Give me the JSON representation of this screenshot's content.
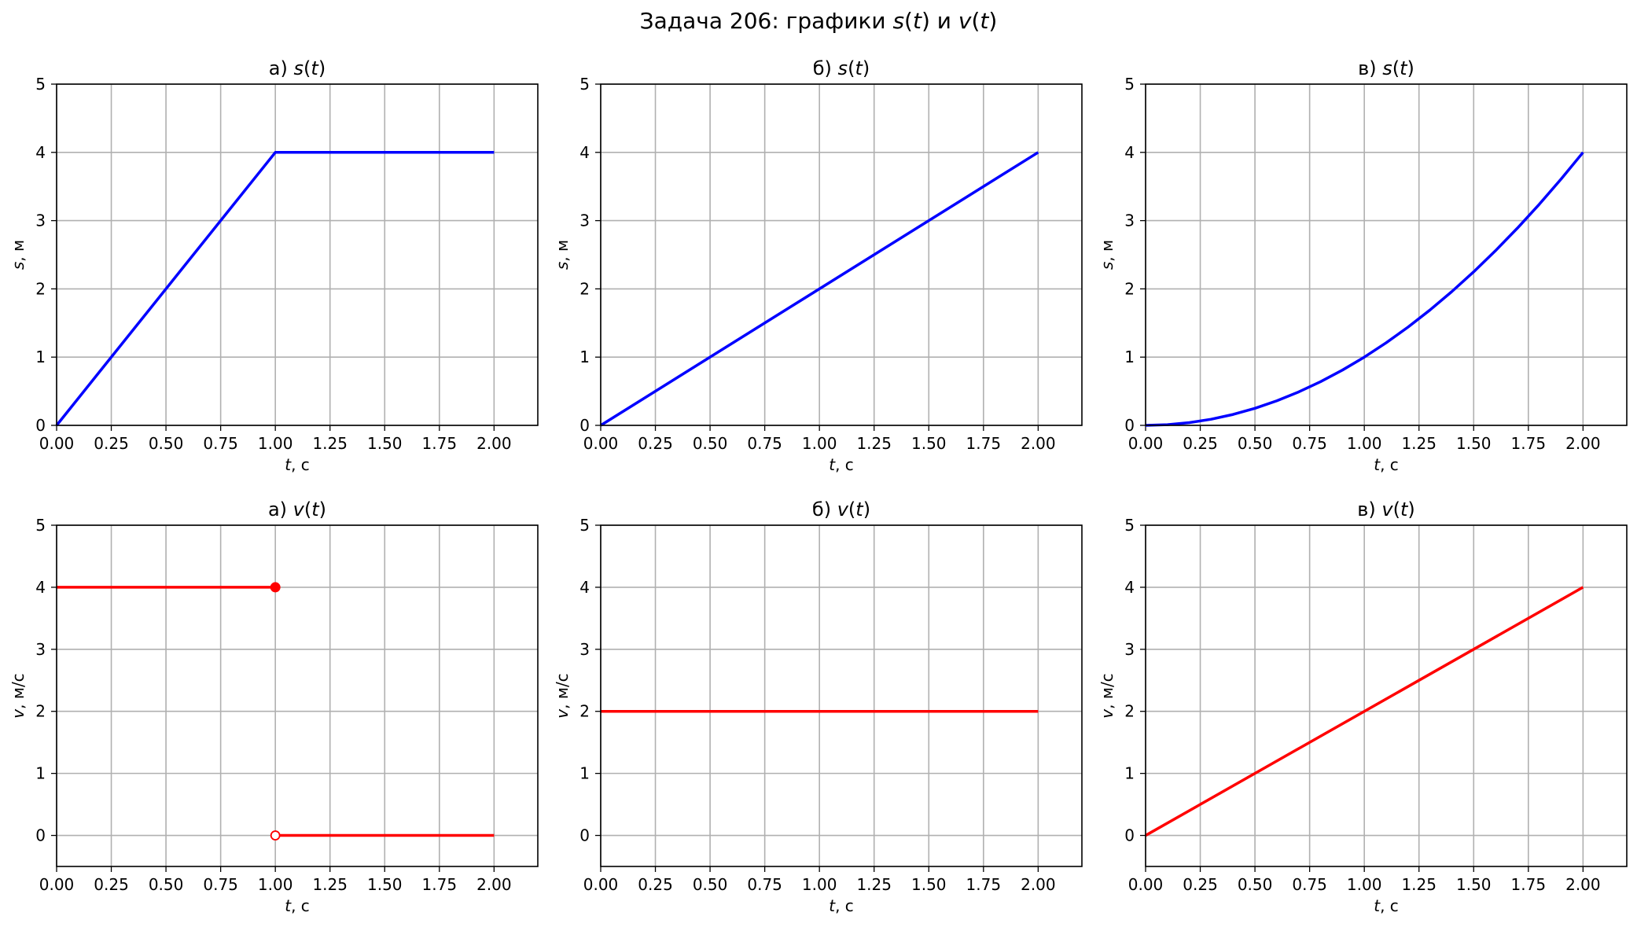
{
  "figure": {
    "title_prefix": "Задача 206: графики ",
    "title_s": "s",
    "title_open1": "(",
    "title_t1": "t",
    "title_close1": ")",
    "title_and": " и ",
    "title_v": "v",
    "title_open2": "(",
    "title_t2": "t",
    "title_close2": ")"
  },
  "colors": {
    "s_series": "#0000ff",
    "v_series": "#ff0000",
    "grid": "#b0b0b0"
  },
  "chart_data": [
    {
      "type": "line",
      "panel": "a-s",
      "title": {
        "prefix": "а) ",
        "func": "s",
        "arg": "t"
      },
      "xlabel": {
        "var": "t",
        "unit": ", с"
      },
      "ylabel": {
        "var": "s",
        "unit": ", м"
      },
      "xlim": [
        0,
        2.2
      ],
      "ylim": [
        0,
        5
      ],
      "xticks": [
        "0.00",
        "0.25",
        "0.50",
        "0.75",
        "1.00",
        "1.25",
        "1.50",
        "1.75",
        "2.00"
      ],
      "yticks": [
        "0",
        "1",
        "2",
        "3",
        "4",
        "5"
      ],
      "grid": true,
      "series": [
        {
          "color": "blue",
          "segments": [
            {
              "x": [
                0,
                1,
                2
              ],
              "y": [
                0,
                4,
                4
              ]
            }
          ]
        }
      ]
    },
    {
      "type": "line",
      "panel": "b-s",
      "title": {
        "prefix": "б) ",
        "func": "s",
        "arg": "t"
      },
      "xlabel": {
        "var": "t",
        "unit": ", с"
      },
      "ylabel": {
        "var": "s",
        "unit": ", м"
      },
      "xlim": [
        0,
        2.2
      ],
      "ylim": [
        0,
        5
      ],
      "xticks": [
        "0.00",
        "0.25",
        "0.50",
        "0.75",
        "1.00",
        "1.25",
        "1.50",
        "1.75",
        "2.00"
      ],
      "yticks": [
        "0",
        "1",
        "2",
        "3",
        "4",
        "5"
      ],
      "grid": true,
      "series": [
        {
          "color": "blue",
          "segments": [
            {
              "x": [
                0,
                2
              ],
              "y": [
                0,
                4
              ]
            }
          ]
        }
      ]
    },
    {
      "type": "line",
      "panel": "c-s",
      "title": {
        "prefix": "в) ",
        "func": "s",
        "arg": "t"
      },
      "xlabel": {
        "var": "t",
        "unit": ", с"
      },
      "ylabel": {
        "var": "s",
        "unit": ", м"
      },
      "xlim": [
        0,
        2.2
      ],
      "ylim": [
        0,
        5
      ],
      "xticks": [
        "0.00",
        "0.25",
        "0.50",
        "0.75",
        "1.00",
        "1.25",
        "1.50",
        "1.75",
        "2.00"
      ],
      "yticks": [
        "0",
        "1",
        "2",
        "3",
        "4",
        "5"
      ],
      "grid": true,
      "series": [
        {
          "color": "blue",
          "segments": [
            {
              "x": [
                0,
                0.1,
                0.2,
                0.3,
                0.4,
                0.5,
                0.6,
                0.7,
                0.8,
                0.9,
                1.0,
                1.1,
                1.2,
                1.3,
                1.4,
                1.5,
                1.6,
                1.7,
                1.8,
                1.9,
                2.0
              ],
              "y": [
                0,
                0.01,
                0.04,
                0.09,
                0.16,
                0.25,
                0.36,
                0.49,
                0.64,
                0.81,
                1.0,
                1.21,
                1.44,
                1.69,
                1.96,
                2.25,
                2.56,
                2.89,
                3.24,
                3.61,
                4.0
              ]
            }
          ]
        }
      ]
    },
    {
      "type": "line",
      "panel": "a-v",
      "title": {
        "prefix": "а) ",
        "func": "v",
        "arg": "t"
      },
      "xlabel": {
        "var": "t",
        "unit": ", с"
      },
      "ylabel": {
        "var": "v",
        "unit": ", м/с"
      },
      "xlim": [
        0,
        2.2
      ],
      "ylim": [
        -0.5,
        5
      ],
      "xticks": [
        "0.00",
        "0.25",
        "0.50",
        "0.75",
        "1.00",
        "1.25",
        "1.50",
        "1.75",
        "2.00"
      ],
      "yticks": [
        "0",
        "1",
        "2",
        "3",
        "4",
        "5"
      ],
      "grid": true,
      "series": [
        {
          "color": "red",
          "segments": [
            {
              "x": [
                0,
                1
              ],
              "y": [
                4,
                4
              ]
            },
            {
              "x": [
                1,
                2
              ],
              "y": [
                0,
                0
              ]
            }
          ]
        }
      ],
      "markers": [
        {
          "x": 1,
          "y": 4,
          "filled": true
        },
        {
          "x": 1,
          "y": 0,
          "filled": false
        }
      ]
    },
    {
      "type": "line",
      "panel": "b-v",
      "title": {
        "prefix": "б) ",
        "func": "v",
        "arg": "t"
      },
      "xlabel": {
        "var": "t",
        "unit": ", с"
      },
      "ylabel": {
        "var": "v",
        "unit": ", м/с"
      },
      "xlim": [
        0,
        2.2
      ],
      "ylim": [
        -0.5,
        5
      ],
      "xticks": [
        "0.00",
        "0.25",
        "0.50",
        "0.75",
        "1.00",
        "1.25",
        "1.50",
        "1.75",
        "2.00"
      ],
      "yticks": [
        "0",
        "1",
        "2",
        "3",
        "4",
        "5"
      ],
      "grid": true,
      "series": [
        {
          "color": "red",
          "segments": [
            {
              "x": [
                0,
                2
              ],
              "y": [
                2,
                2
              ]
            }
          ]
        }
      ]
    },
    {
      "type": "line",
      "panel": "c-v",
      "title": {
        "prefix": "в) ",
        "func": "v",
        "arg": "t"
      },
      "xlabel": {
        "var": "t",
        "unit": ", с"
      },
      "ylabel": {
        "var": "v",
        "unit": ", м/с"
      },
      "xlim": [
        0,
        2.2
      ],
      "ylim": [
        -0.5,
        5
      ],
      "xticks": [
        "0.00",
        "0.25",
        "0.50",
        "0.75",
        "1.00",
        "1.25",
        "1.50",
        "1.75",
        "2.00"
      ],
      "yticks": [
        "0",
        "1",
        "2",
        "3",
        "4",
        "5"
      ],
      "grid": true,
      "series": [
        {
          "color": "red",
          "segments": [
            {
              "x": [
                0,
                2
              ],
              "y": [
                0,
                4
              ]
            }
          ]
        }
      ]
    }
  ]
}
